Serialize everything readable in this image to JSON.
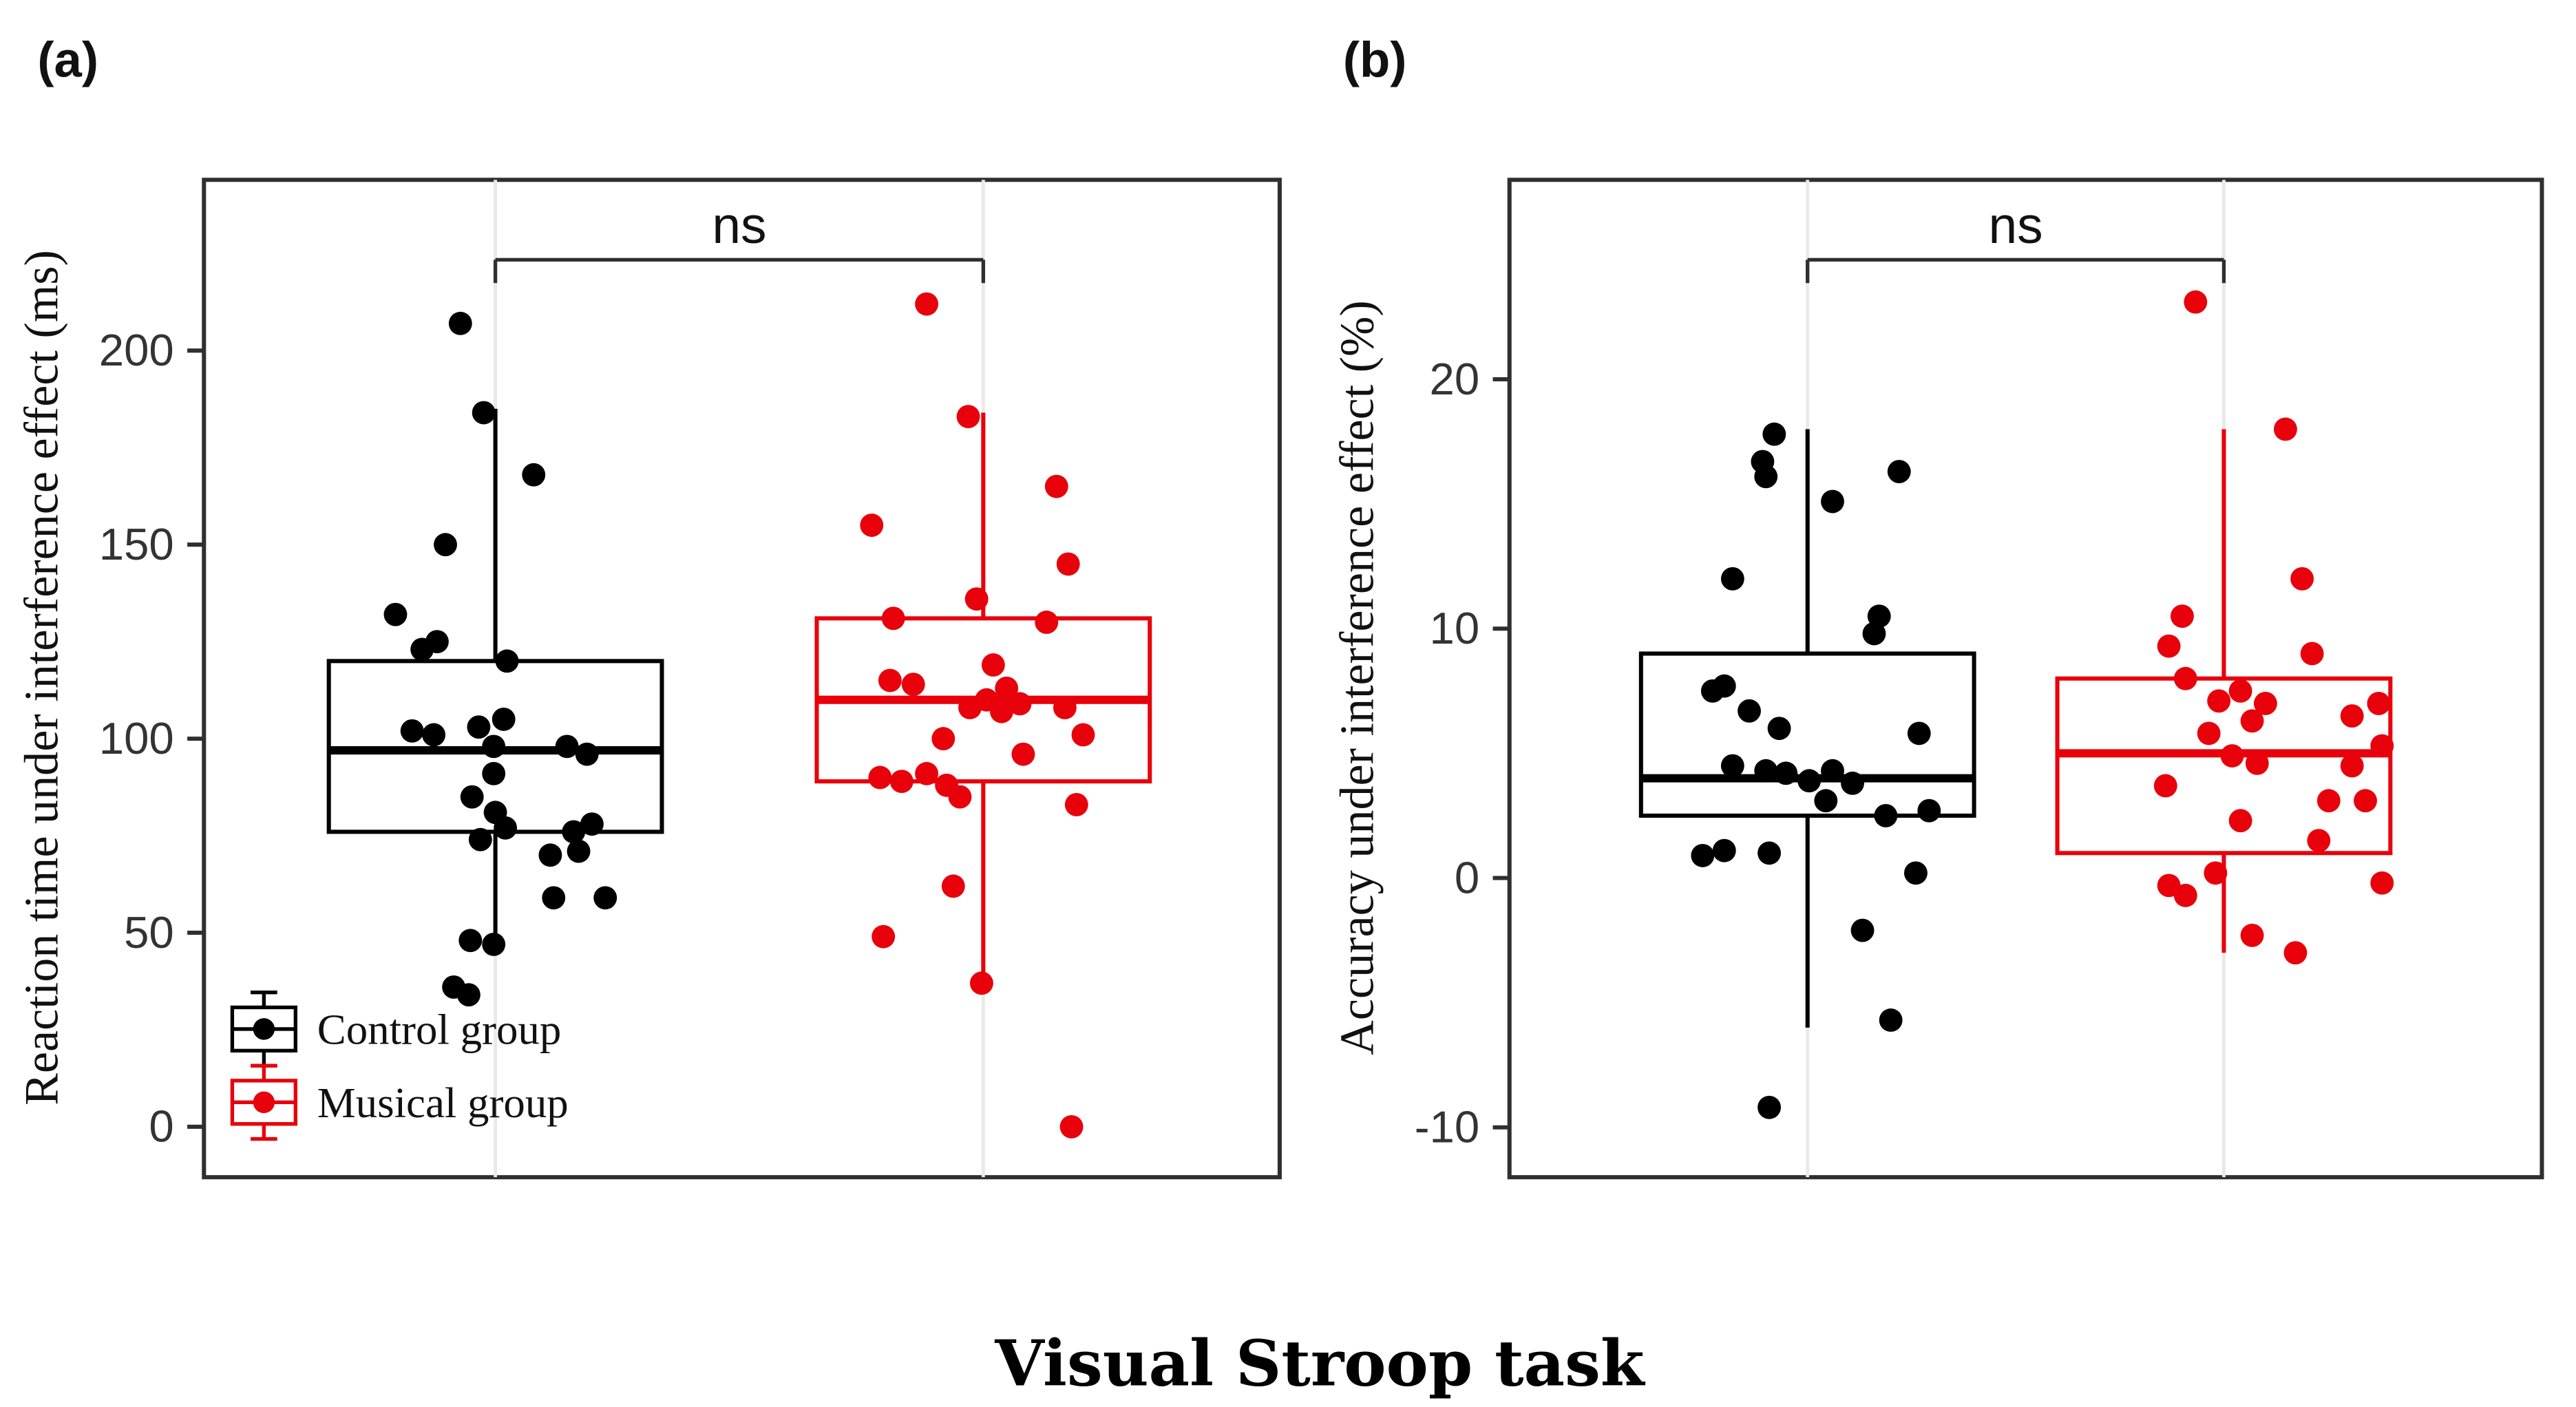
{
  "figure": {
    "title": "Visual Stroop task",
    "panel_a_tag": "(a)",
    "panel_b_tag": "(b)",
    "legend": {
      "items": [
        {
          "label": "Control group",
          "color": "#000000"
        },
        {
          "label": "Musical group",
          "color": "#e8000b"
        }
      ]
    }
  },
  "chart_data": [
    {
      "type": "boxplot",
      "panel": "a",
      "ylabel": "Reaction time under interference effect  (ms)",
      "xlabel": "",
      "yticks": [
        0,
        50,
        100,
        150,
        200
      ],
      "ylim": [
        -13,
        244
      ],
      "annotation": "ns",
      "grid": "major-x-only",
      "legend_position": "bottom-left-inside",
      "groups": [
        {
          "name": "Control group",
          "color": "#000000",
          "box": {
            "whisker_low": 48,
            "q1": 76,
            "median": 97,
            "q3": 120,
            "whisker_high": 185
          },
          "points": [
            [
              -21,
              207
            ],
            [
              -7,
              184
            ],
            [
              23,
              168
            ],
            [
              -30,
              150
            ],
            [
              -60,
              132
            ],
            [
              -35,
              125
            ],
            [
              -44,
              123
            ],
            [
              7,
              120
            ],
            [
              5,
              105
            ],
            [
              -10,
              103
            ],
            [
              -50,
              102
            ],
            [
              -37,
              101
            ],
            [
              -1,
              98
            ],
            [
              43,
              98
            ],
            [
              55,
              96
            ],
            [
              -1,
              91
            ],
            [
              -14,
              85
            ],
            [
              0,
              81
            ],
            [
              58,
              78
            ],
            [
              6,
              77
            ],
            [
              47,
              76
            ],
            [
              -9,
              74
            ],
            [
              50,
              71
            ],
            [
              33,
              70
            ],
            [
              66,
              59
            ],
            [
              35,
              59
            ],
            [
              -15,
              48
            ],
            [
              -1,
              47
            ],
            [
              -25,
              36
            ],
            [
              -16,
              34
            ]
          ]
        },
        {
          "name": "Musical group",
          "color": "#e8000b",
          "box": {
            "whisker_low": 38,
            "q1": 89,
            "median": 110,
            "q3": 131,
            "whisker_high": 184
          },
          "points": [
            [
              -34,
              212
            ],
            [
              -9,
              183
            ],
            [
              44,
              165
            ],
            [
              -67,
              155
            ],
            [
              51,
              145
            ],
            [
              -4,
              136
            ],
            [
              -54,
              131
            ],
            [
              38,
              130
            ],
            [
              6,
              119
            ],
            [
              -56,
              115
            ],
            [
              -42,
              114
            ],
            [
              14,
              113
            ],
            [
              2,
              110
            ],
            [
              22,
              109
            ],
            [
              -8,
              108
            ],
            [
              49,
              108
            ],
            [
              11,
              107
            ],
            [
              60,
              101
            ],
            [
              -24,
              100
            ],
            [
              24,
              96
            ],
            [
              -34,
              91
            ],
            [
              -62,
              90
            ],
            [
              -49,
              89
            ],
            [
              -22,
              88
            ],
            [
              -14,
              85
            ],
            [
              56,
              83
            ],
            [
              -18,
              62
            ],
            [
              -60,
              49
            ],
            [
              -1,
              37
            ],
            [
              53,
              0
            ]
          ]
        }
      ]
    },
    {
      "type": "boxplot",
      "panel": "b",
      "ylabel": "Accuracy under interference effect  (%)",
      "xlabel": "",
      "yticks": [
        -10,
        0,
        10,
        20
      ],
      "ylim": [
        -12,
        28
      ],
      "annotation": "ns",
      "grid": "major-x-only",
      "groups": [
        {
          "name": "Control group",
          "color": "#000000",
          "box": {
            "whisker_low": -6,
            "q1": 2.5,
            "median": 4,
            "q3": 9,
            "whisker_high": 18
          },
          "points": [
            [
              -20,
              17.8
            ],
            [
              -27,
              16.7
            ],
            [
              55,
              16.3
            ],
            [
              -25,
              16.1
            ],
            [
              15,
              15.1
            ],
            [
              -45,
              12
            ],
            [
              43,
              10.5
            ],
            [
              40,
              9.8
            ],
            [
              -50,
              7.7
            ],
            [
              -57,
              7.5
            ],
            [
              -35,
              6.7
            ],
            [
              -17,
              6
            ],
            [
              67,
              5.8
            ],
            [
              -45,
              4.5
            ],
            [
              -25,
              4.3
            ],
            [
              15,
              4.3
            ],
            [
              -13,
              4.2
            ],
            [
              1,
              3.9
            ],
            [
              27,
              3.8
            ],
            [
              11,
              3.1
            ],
            [
              73,
              2.7
            ],
            [
              47,
              2.5
            ],
            [
              -50,
              1.1
            ],
            [
              -23,
              1
            ],
            [
              -63,
              0.9
            ],
            [
              65,
              0.2
            ],
            [
              33,
              -2.1
            ],
            [
              50,
              -5.7
            ],
            [
              -23,
              -9.2
            ]
          ]
        },
        {
          "name": "Musical group",
          "color": "#e8000b",
          "box": {
            "whisker_low": -3,
            "q1": 1,
            "median": 5,
            "q3": 8,
            "whisker_high": 18
          },
          "points": [
            [
              -17,
              23.1
            ],
            [
              37,
              18
            ],
            [
              47,
              12
            ],
            [
              -25,
              10.5
            ],
            [
              -33,
              9.3
            ],
            [
              53,
              9
            ],
            [
              -23,
              8
            ],
            [
              10,
              7.5
            ],
            [
              -3,
              7.1
            ],
            [
              25,
              7
            ],
            [
              93,
              7
            ],
            [
              77,
              6.5
            ],
            [
              17,
              6.3
            ],
            [
              -9,
              5.8
            ],
            [
              95,
              5.3
            ],
            [
              5,
              4.9
            ],
            [
              20,
              4.6
            ],
            [
              77,
              4.5
            ],
            [
              -35,
              3.7
            ],
            [
              63,
              3.1
            ],
            [
              85,
              3.1
            ],
            [
              10,
              2.3
            ],
            [
              57,
              1.5
            ],
            [
              -5,
              0.2
            ],
            [
              95,
              -0.2
            ],
            [
              -33,
              -0.3
            ],
            [
              -23,
              -0.7
            ],
            [
              17,
              -2.3
            ],
            [
              43,
              -3
            ]
          ]
        }
      ]
    }
  ]
}
